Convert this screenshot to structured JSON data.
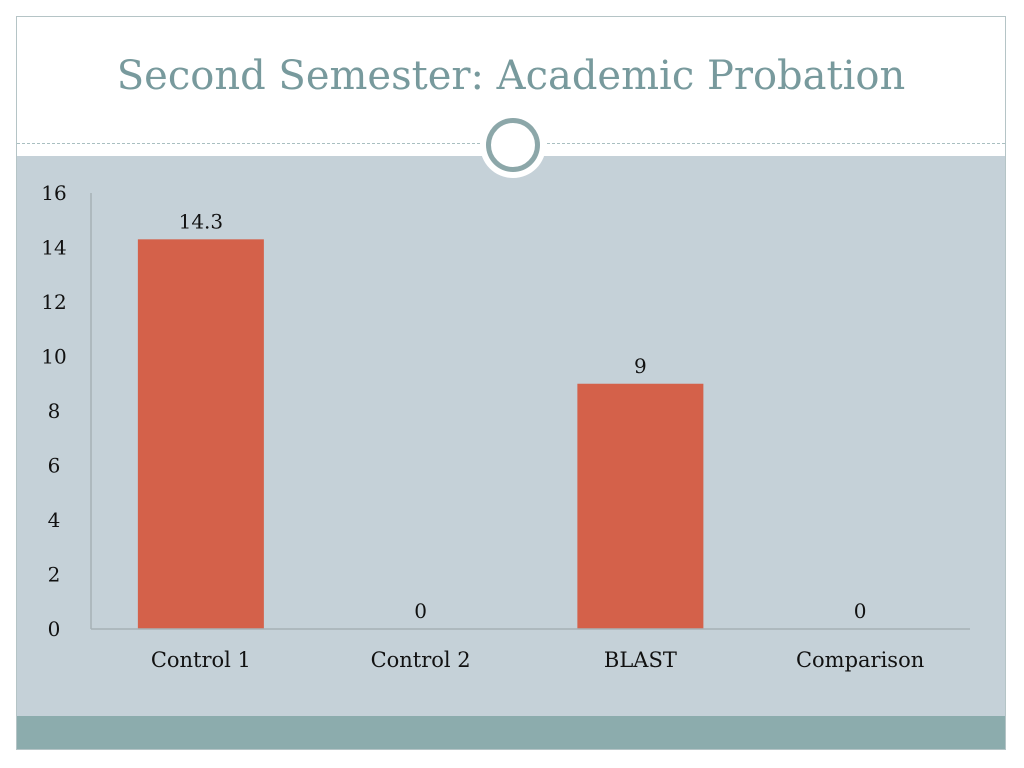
{
  "slide": {
    "title": "Second Semester: Academic Probation"
  },
  "colors": {
    "title": "#789a9d",
    "panel": "#c5d1d8",
    "footer": "#8cacad",
    "bar": "#d4614a",
    "axis": "#a6b1b6"
  },
  "chart_data": {
    "type": "bar",
    "categories": [
      "Control 1",
      "Control 2",
      "BLAST",
      "Comparison"
    ],
    "values": [
      14.3,
      0,
      9,
      0
    ],
    "data_labels": [
      "14.3",
      "0",
      "9",
      "0"
    ],
    "ylim": [
      0,
      16
    ],
    "yticks": [
      0,
      2,
      4,
      6,
      8,
      10,
      12,
      14,
      16
    ],
    "title": "",
    "xlabel": "",
    "ylabel": "",
    "grid": false,
    "legend": "none"
  }
}
